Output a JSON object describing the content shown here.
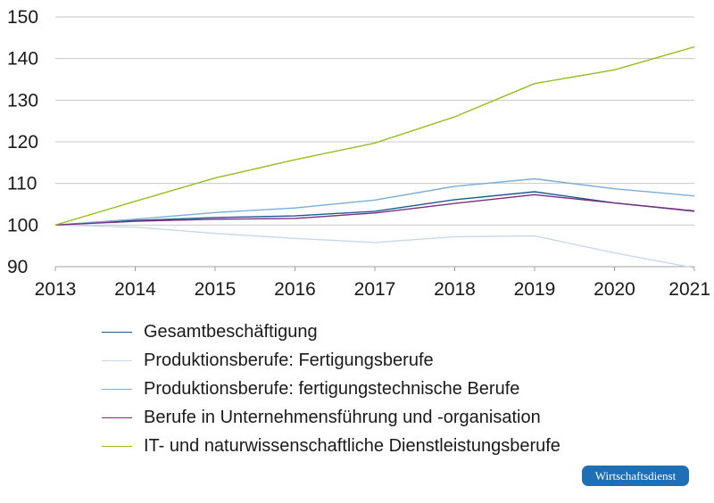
{
  "chart_data": {
    "type": "line",
    "title": "",
    "xlabel": "",
    "ylabel": "",
    "x": [
      "2013",
      "2014",
      "2015",
      "2016",
      "2017",
      "2018",
      "2019",
      "2020",
      "2021"
    ],
    "ylim": [
      90,
      150
    ],
    "yticks": [
      "90",
      "100",
      "110",
      "120",
      "130",
      "140",
      "150"
    ],
    "grid": "horizontal",
    "legend_position": "bottom",
    "series": [
      {
        "name": "Gesamtbeschäftigung",
        "color": "#1a5a8f",
        "values": [
          100,
          101.1,
          101.8,
          102.2,
          103.3,
          106.1,
          108.0,
          105.3,
          103.3
        ]
      },
      {
        "name": "Produktionsberufe: Fertigungsberufe",
        "color": "#c6d9ec",
        "values": [
          100,
          99.5,
          98.0,
          96.8,
          95.8,
          97.2,
          97.4,
          93.3,
          89.7
        ]
      },
      {
        "name": "Produktionsberufe: fertigungstechnische Berufe",
        "color": "#7aaed8",
        "values": [
          100,
          101.4,
          103.0,
          104.1,
          106.0,
          109.3,
          111.1,
          108.7,
          107.0
        ]
      },
      {
        "name": "Berufe in Unternehmensführung und -organisation",
        "color": "#7b2d7e",
        "values": [
          100,
          100.9,
          101.4,
          101.6,
          102.9,
          105.2,
          107.3,
          105.3,
          103.4
        ]
      },
      {
        "name": "IT- und naturwissenschaftliche Dienstleistungsberufe",
        "color": "#93c01f",
        "values": [
          100,
          105.7,
          111.3,
          115.7,
          119.7,
          126.0,
          134.0,
          137.3,
          142.8
        ]
      }
    ]
  },
  "badge": {
    "label": "Wirtschaftsdienst"
  }
}
